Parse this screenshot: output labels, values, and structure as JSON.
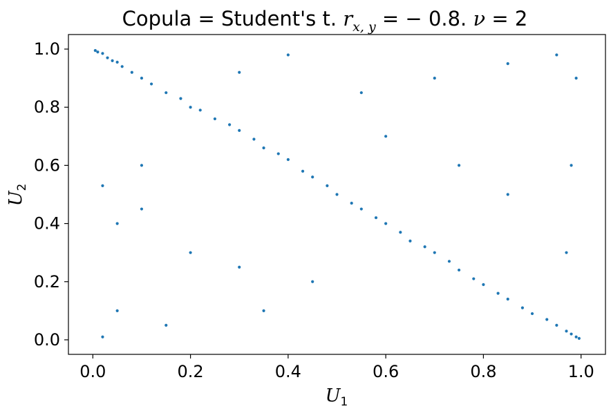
{
  "chart_data": {
    "type": "scatter",
    "title": {
      "prefix": "Copula = Student's t. ",
      "r_symbol": "r",
      "r_subscript": "x, y",
      "r_value": " = − 0.8. ",
      "nu_symbol": "ν",
      "nu_value": " = 2"
    },
    "xlabel": {
      "symbol": "U",
      "subscript": "1"
    },
    "ylabel": {
      "symbol": "U",
      "subscript": "2"
    },
    "xlim": [
      -0.05,
      1.05
    ],
    "ylim": [
      -0.05,
      1.05
    ],
    "xticks": [
      "0.0",
      "0.2",
      "0.4",
      "0.6",
      "0.8",
      "1.0"
    ],
    "yticks": [
      "0.0",
      "0.2",
      "0.4",
      "0.6",
      "0.8",
      "1.0"
    ],
    "grid": false,
    "marker_color": "#1f77b4",
    "copula": {
      "family": "Student's t",
      "r": -0.8,
      "nu": 2
    },
    "points": [
      [
        0.01,
        0.99
      ],
      [
        0.02,
        0.985
      ],
      [
        0.03,
        0.97
      ],
      [
        0.04,
        0.96
      ],
      [
        0.05,
        0.955
      ],
      [
        0.06,
        0.94
      ],
      [
        0.08,
        0.92
      ],
      [
        0.1,
        0.9
      ],
      [
        0.12,
        0.88
      ],
      [
        0.15,
        0.85
      ],
      [
        0.18,
        0.83
      ],
      [
        0.2,
        0.8
      ],
      [
        0.22,
        0.79
      ],
      [
        0.25,
        0.76
      ],
      [
        0.28,
        0.74
      ],
      [
        0.3,
        0.72
      ],
      [
        0.33,
        0.69
      ],
      [
        0.35,
        0.66
      ],
      [
        0.38,
        0.64
      ],
      [
        0.4,
        0.62
      ],
      [
        0.43,
        0.58
      ],
      [
        0.45,
        0.56
      ],
      [
        0.48,
        0.53
      ],
      [
        0.5,
        0.5
      ],
      [
        0.53,
        0.47
      ],
      [
        0.55,
        0.45
      ],
      [
        0.58,
        0.42
      ],
      [
        0.6,
        0.4
      ],
      [
        0.63,
        0.37
      ],
      [
        0.65,
        0.34
      ],
      [
        0.68,
        0.32
      ],
      [
        0.7,
        0.3
      ],
      [
        0.73,
        0.27
      ],
      [
        0.75,
        0.24
      ],
      [
        0.78,
        0.21
      ],
      [
        0.8,
        0.19
      ],
      [
        0.83,
        0.16
      ],
      [
        0.85,
        0.14
      ],
      [
        0.88,
        0.11
      ],
      [
        0.9,
        0.09
      ],
      [
        0.93,
        0.07
      ],
      [
        0.95,
        0.05
      ],
      [
        0.97,
        0.03
      ],
      [
        0.98,
        0.02
      ],
      [
        0.99,
        0.01
      ],
      [
        0.996,
        0.005
      ],
      [
        0.005,
        0.995
      ],
      [
        0.1,
        0.45
      ],
      [
        0.2,
        0.3
      ],
      [
        0.3,
        0.25
      ],
      [
        0.55,
        0.85
      ],
      [
        0.7,
        0.9
      ],
      [
        0.85,
        0.95
      ],
      [
        0.95,
        0.98
      ],
      [
        0.99,
        0.9
      ],
      [
        0.98,
        0.6
      ],
      [
        0.97,
        0.3
      ],
      [
        0.02,
        0.01
      ],
      [
        0.05,
        0.1
      ],
      [
        0.15,
        0.05
      ],
      [
        0.35,
        0.1
      ],
      [
        0.45,
        0.2
      ],
      [
        0.6,
        0.7
      ],
      [
        0.75,
        0.6
      ],
      [
        0.85,
        0.5
      ],
      [
        0.4,
        0.98
      ],
      [
        0.3,
        0.92
      ],
      [
        0.1,
        0.6
      ],
      [
        0.05,
        0.4
      ],
      [
        0.02,
        0.53
      ]
    ]
  }
}
